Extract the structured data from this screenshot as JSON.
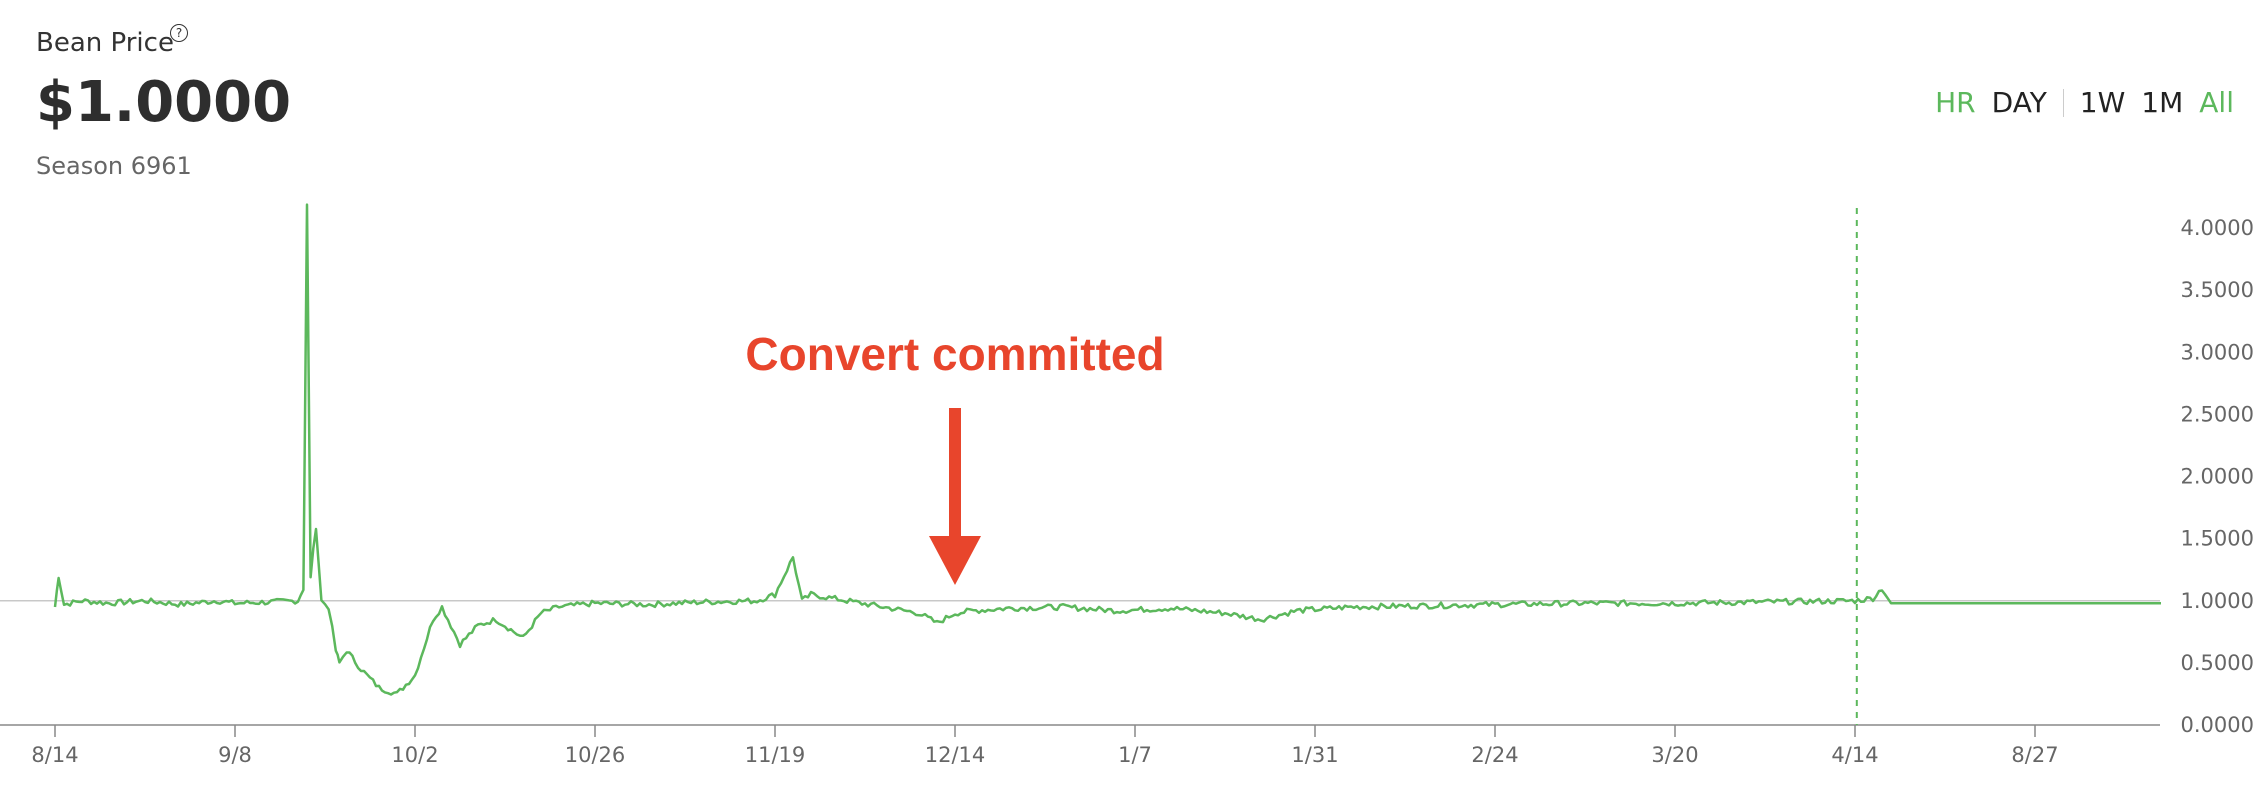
{
  "header": {
    "title": "Bean Price",
    "help_icon": "question-circle-icon",
    "price": "$1.0000",
    "season": "Season 6961"
  },
  "range_options": [
    {
      "label": "HR",
      "active": true
    },
    {
      "label": "DAY",
      "active": false
    },
    {
      "label": "1W",
      "active": false
    },
    {
      "label": "1M",
      "active": false
    },
    {
      "label": "All",
      "active": true
    }
  ],
  "colors": {
    "line": "#5cb85c",
    "annotation": "#e8452c",
    "axis": "#888888"
  },
  "chart_data": {
    "type": "line",
    "ylim": [
      0,
      4.0
    ],
    "yticks": [
      "0.0000",
      "0.5000",
      "1.0000",
      "1.5000",
      "2.0000",
      "2.5000",
      "3.0000",
      "3.5000",
      "4.0000"
    ],
    "xticks": [
      "8/14",
      "9/8",
      "10/2",
      "10/26",
      "11/19",
      "12/14",
      "1/7",
      "1/31",
      "2/24",
      "3/20",
      "4/14",
      "8/27"
    ],
    "reference_line": 1.0,
    "annotation": {
      "text": "Convert committed",
      "at_tick": "12/14"
    },
    "current_marker_after_tick": "4/14",
    "series": [
      {
        "values": [
          [
            0,
            0.95
          ],
          [
            0.02,
            1.2
          ],
          [
            0.05,
            0.97
          ],
          [
            0.15,
            1.0
          ],
          [
            0.3,
            0.98
          ],
          [
            0.5,
            1.0
          ],
          [
            0.7,
            0.97
          ],
          [
            0.9,
            1.0
          ],
          [
            1.0,
            0.98
          ],
          [
            1.2,
            0.99
          ],
          [
            1.35,
            1.0
          ],
          [
            1.38,
            1.1
          ],
          [
            1.4,
            4.18
          ],
          [
            1.42,
            1.2
          ],
          [
            1.45,
            1.6
          ],
          [
            1.48,
            1.0
          ],
          [
            1.52,
            0.95
          ],
          [
            1.56,
            0.6
          ],
          [
            1.58,
            0.5
          ],
          [
            1.62,
            0.6
          ],
          [
            1.7,
            0.45
          ],
          [
            1.8,
            0.3
          ],
          [
            1.9,
            0.25
          ],
          [
            2.0,
            0.4
          ],
          [
            2.1,
            0.85
          ],
          [
            2.15,
            0.95
          ],
          [
            2.2,
            0.8
          ],
          [
            2.25,
            0.65
          ],
          [
            2.35,
            0.8
          ],
          [
            2.45,
            0.85
          ],
          [
            2.55,
            0.75
          ],
          [
            2.6,
            0.7
          ],
          [
            2.7,
            0.9
          ],
          [
            2.8,
            0.95
          ],
          [
            3.0,
            0.98
          ],
          [
            3.3,
            0.97
          ],
          [
            3.6,
            0.99
          ],
          [
            3.9,
            1.0
          ],
          [
            4.0,
            1.05
          ],
          [
            4.1,
            1.35
          ],
          [
            4.15,
            1.0
          ],
          [
            4.2,
            1.05
          ],
          [
            4.4,
            1.0
          ],
          [
            4.6,
            0.95
          ],
          [
            4.8,
            0.9
          ],
          [
            4.9,
            0.82
          ],
          [
            5.0,
            0.9
          ],
          [
            5.1,
            0.92
          ],
          [
            5.3,
            0.94
          ],
          [
            5.6,
            0.95
          ],
          [
            5.9,
            0.92
          ],
          [
            6.2,
            0.94
          ],
          [
            6.5,
            0.9
          ],
          [
            6.7,
            0.85
          ],
          [
            6.9,
            0.92
          ],
          [
            7.2,
            0.95
          ],
          [
            7.6,
            0.96
          ],
          [
            8.0,
            0.97
          ],
          [
            8.5,
            0.98
          ],
          [
            9.0,
            0.98
          ],
          [
            9.5,
            0.99
          ],
          [
            10.0,
            1.0
          ],
          [
            10.1,
            1.02
          ],
          [
            10.15,
            1.1
          ],
          [
            10.2,
            0.98
          ],
          [
            10.5,
            0.98
          ],
          [
            11.0,
            0.98
          ],
          [
            11.7,
            0.98
          ]
        ]
      }
    ]
  }
}
